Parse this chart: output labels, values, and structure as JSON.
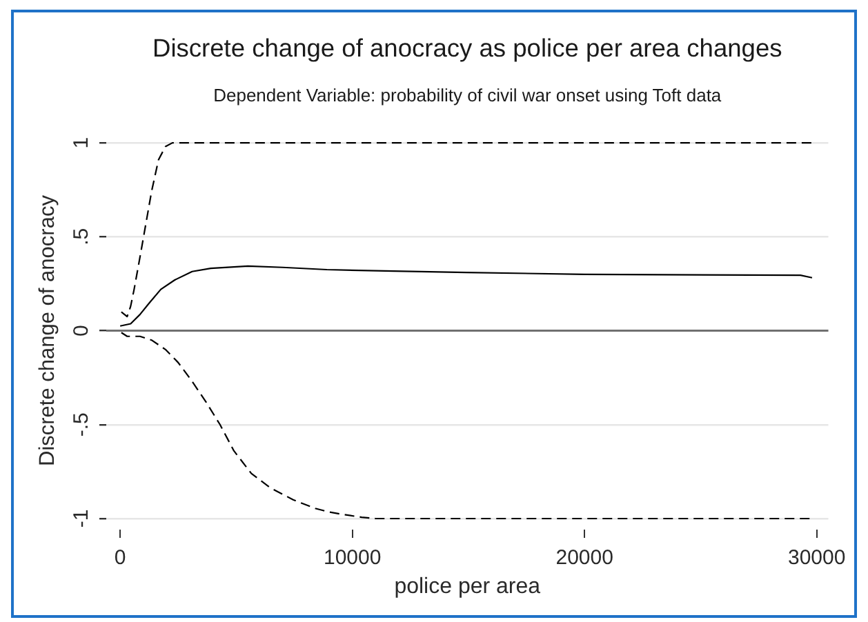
{
  "chart_data": {
    "type": "line",
    "title": "Discrete change of anocracy as police per area changes",
    "subtitle": "Dependent Variable: probability of civil war onset using Toft data",
    "xlabel": "police per area",
    "ylabel": "Discrete change of anocracy",
    "series": [
      {
        "color": "#000000",
        "line_style": "dashed",
        "x": [
          50,
          300,
          450,
          600,
          850,
          1100,
          1350,
          1650,
          1950,
          2250,
          10000,
          20000,
          29800
        ],
        "values": [
          0.1,
          0.075,
          0.13,
          0.22,
          0.39,
          0.565,
          0.74,
          0.91,
          0.98,
          1,
          1,
          1,
          1
        ]
      },
      {
        "color": "#000000",
        "line_style": "solid",
        "x": [
          0,
          450,
          850,
          1250,
          1750,
          2350,
          3100,
          3900,
          5500,
          7000,
          8900,
          11400,
          14900,
          20000,
          29300,
          29800
        ],
        "values": [
          0.025,
          0.037,
          0.086,
          0.147,
          0.22,
          0.27,
          0.315,
          0.332,
          0.344,
          0.337,
          0.325,
          0.318,
          0.31,
          0.3,
          0.295,
          0.282
        ]
      },
      {
        "color": "#000000",
        "line_style": "dashed",
        "x": [
          50,
          300,
          850,
          1350,
          1950,
          2500,
          3100,
          3700,
          4300,
          4900,
          5650,
          6450,
          7450,
          8400,
          9000,
          9600,
          10400,
          11000,
          20000,
          29800
        ],
        "values": [
          -0.01,
          -0.03,
          -0.03,
          -0.05,
          -0.1,
          -0.17,
          -0.27,
          -0.38,
          -0.5,
          -0.64,
          -0.76,
          -0.835,
          -0.9,
          -0.946,
          -0.965,
          -0.978,
          -0.993,
          -1,
          -1,
          -1
        ]
      }
    ],
    "xlim": [
      -600,
      30500
    ],
    "ylim": [
      -1,
      1
    ],
    "xticks": [
      0,
      10000,
      20000,
      30000
    ],
    "yticks": [
      -1,
      {
        "value": -0.5,
        "label": "-.5"
      },
      0,
      {
        "value": 0.5,
        "label": ".5"
      },
      1
    ],
    "grid": "y",
    "marker": "none",
    "ref_lines": [
      {
        "axis": "y",
        "value": 0,
        "color": "#707070"
      }
    ]
  }
}
